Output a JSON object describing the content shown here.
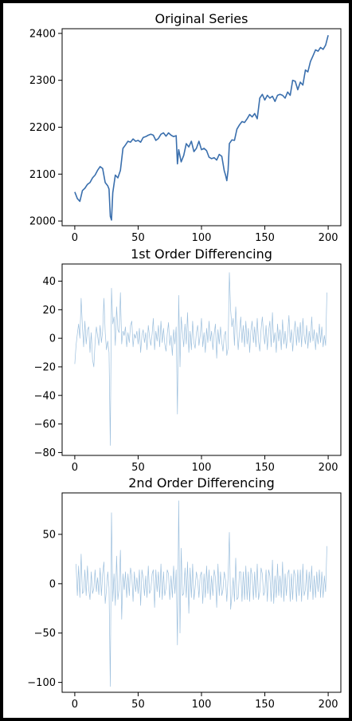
{
  "chart_data": [
    {
      "type": "line",
      "title": "Original Series",
      "xlim": [
        -10,
        210
      ],
      "ylim": [
        1990,
        2410
      ],
      "xticks": [
        0,
        50,
        100,
        150,
        200
      ],
      "yticks": [
        2000,
        2100,
        2200,
        2300,
        2400
      ],
      "line_color": "#3a6fad",
      "line_weight": "thick",
      "series": [
        {
          "x": [
            0,
            2,
            4,
            6,
            8,
            10,
            12,
            14,
            16,
            18,
            20,
            22,
            24,
            26,
            27,
            28,
            29,
            30,
            32,
            34,
            36,
            38,
            40,
            42,
            44,
            46,
            48,
            50,
            52,
            54,
            56,
            58,
            60,
            62,
            64,
            66,
            68,
            70,
            72,
            74,
            76,
            78,
            80,
            81,
            82,
            84,
            86,
            88,
            90,
            92,
            94,
            96,
            98,
            100,
            102,
            104,
            106,
            108,
            110,
            112,
            114,
            116,
            118,
            119,
            120,
            121,
            122,
            124,
            126,
            128,
            130,
            132,
            134,
            136,
            138,
            140,
            142,
            144,
            146,
            148,
            150,
            152,
            154,
            156,
            158,
            160,
            162,
            164,
            166,
            168,
            170,
            172,
            174,
            176,
            178,
            180,
            182,
            184,
            186,
            188,
            190,
            192,
            194,
            196,
            198,
            200
          ],
          "y": [
            2062,
            2048,
            2042,
            2065,
            2070,
            2078,
            2082,
            2092,
            2098,
            2108,
            2116,
            2112,
            2082,
            2075,
            2068,
            2010,
            2002,
            2060,
            2098,
            2092,
            2108,
            2155,
            2162,
            2170,
            2168,
            2175,
            2170,
            2172,
            2168,
            2178,
            2180,
            2183,
            2185,
            2183,
            2172,
            2176,
            2185,
            2188,
            2181,
            2188,
            2183,
            2180,
            2182,
            2122,
            2152,
            2126,
            2140,
            2165,
            2158,
            2170,
            2148,
            2155,
            2170,
            2152,
            2155,
            2150,
            2136,
            2133,
            2135,
            2130,
            2142,
            2138,
            2107,
            2098,
            2086,
            2108,
            2165,
            2173,
            2172,
            2196,
            2205,
            2212,
            2210,
            2218,
            2227,
            2222,
            2229,
            2218,
            2262,
            2270,
            2258,
            2268,
            2262,
            2266,
            2255,
            2268,
            2270,
            2268,
            2262,
            2275,
            2268,
            2300,
            2298,
            2280,
            2296,
            2290,
            2322,
            2318,
            2340,
            2352,
            2365,
            2362,
            2370,
            2366,
            2375,
            2396
          ]
        }
      ]
    },
    {
      "type": "line",
      "title": "1st Order Differencing",
      "xlim": [
        -10,
        210
      ],
      "ylim": [
        -82,
        52
      ],
      "xticks": [
        0,
        50,
        100,
        150,
        200
      ],
      "yticks": [
        -80,
        -60,
        -40,
        -20,
        0,
        20,
        40
      ],
      "line_color": "#9cbfdd",
      "line_weight": "thin",
      "series": [
        {
          "x": [
            0,
            1,
            2,
            3,
            4,
            5,
            6,
            7,
            8,
            9,
            10,
            11,
            12,
            13,
            14,
            15,
            16,
            17,
            18,
            19,
            20,
            21,
            22,
            23,
            24,
            25,
            26,
            27,
            28,
            29,
            30,
            31,
            32,
            33,
            34,
            35,
            36,
            37,
            38,
            39,
            40,
            41,
            42,
            43,
            44,
            45,
            46,
            47,
            48,
            49,
            50,
            51,
            52,
            53,
            54,
            55,
            56,
            57,
            58,
            59,
            60,
            61,
            62,
            63,
            64,
            65,
            66,
            67,
            68,
            69,
            70,
            71,
            72,
            73,
            74,
            75,
            76,
            77,
            78,
            79,
            80,
            81,
            82,
            83,
            84,
            85,
            86,
            87,
            88,
            89,
            90,
            91,
            92,
            93,
            94,
            95,
            96,
            97,
            98,
            99,
            100,
            101,
            102,
            103,
            104,
            105,
            106,
            107,
            108,
            109,
            110,
            111,
            112,
            113,
            114,
            115,
            116,
            117,
            118,
            119,
            120,
            121,
            122,
            123,
            124,
            125,
            126,
            127,
            128,
            129,
            130,
            131,
            132,
            133,
            134,
            135,
            136,
            137,
            138,
            139,
            140,
            141,
            142,
            143,
            144,
            145,
            146,
            147,
            148,
            149,
            150,
            151,
            152,
            153,
            154,
            155,
            156,
            157,
            158,
            159,
            160,
            161,
            162,
            163,
            164,
            165,
            166,
            167,
            168,
            169,
            170,
            171,
            172,
            173,
            174,
            175,
            176,
            177,
            178,
            179,
            180,
            181,
            182,
            183,
            184,
            185,
            186,
            187,
            188,
            189,
            190,
            191,
            192,
            193,
            194,
            195,
            196,
            197,
            198,
            199
          ],
          "y": [
            -18,
            -5,
            3,
            10,
            0,
            28,
            8,
            -6,
            12,
            -4,
            6,
            8,
            -10,
            4,
            -15,
            -20,
            -3,
            8,
            2,
            -5,
            9,
            -3,
            5,
            28,
            4,
            -8,
            -2,
            -10,
            -75,
            35,
            10,
            15,
            -5,
            22,
            6,
            4,
            32,
            -4,
            5,
            2,
            8,
            -6,
            4,
            -3,
            9,
            12,
            -6,
            3,
            0,
            5,
            -4,
            7,
            -10,
            2,
            6,
            -3,
            4,
            -8,
            9,
            1,
            -5,
            3,
            14,
            -8,
            5,
            -2,
            9,
            -6,
            12,
            -3,
            7,
            -4,
            -9,
            3,
            11,
            -5,
            2,
            -12,
            6,
            -4,
            8,
            -53,
            30,
            -20,
            15,
            4,
            -6,
            10,
            -4,
            18,
            -10,
            5,
            -8,
            12,
            -3,
            -7,
            4,
            9,
            -5,
            2,
            14,
            -6,
            4,
            -10,
            7,
            -3,
            12,
            -2,
            5,
            -8,
            3,
            10,
            -14,
            6,
            -4,
            8,
            -3,
            -9,
            2,
            5,
            -12,
            -7,
            46,
            20,
            8,
            14,
            -5,
            22,
            6,
            -8,
            4,
            15,
            -3,
            9,
            -6,
            12,
            -4,
            7,
            -10,
            5,
            12,
            -3,
            8,
            -6,
            14,
            -2,
            -9,
            6,
            15,
            3,
            -4,
            9,
            -8,
            5,
            12,
            -6,
            18,
            -3,
            4,
            -10,
            10,
            -2,
            6,
            -8,
            13,
            -4,
            5,
            -7,
            3,
            16,
            -3,
            6,
            -9,
            4,
            12,
            -5,
            8,
            -3,
            11,
            -6,
            14,
            2,
            -4,
            9,
            -7,
            5,
            -3,
            15,
            -2,
            6,
            -8,
            4,
            -4,
            10,
            -3,
            8,
            -6,
            2,
            -5,
            32
          ]
        }
      ]
    },
    {
      "type": "line",
      "title": "2nd Order Differencing",
      "xlim": [
        -10,
        210
      ],
      "ylim": [
        -110,
        92
      ],
      "xticks": [
        0,
        50,
        100,
        150,
        200
      ],
      "yticks": [
        -100,
        -50,
        0,
        50
      ],
      "line_color": "#9cbfdd",
      "line_weight": "thin",
      "series": [
        {
          "x": [
            1,
            2,
            3,
            4,
            5,
            6,
            7,
            8,
            9,
            10,
            11,
            12,
            13,
            14,
            15,
            16,
            17,
            18,
            19,
            20,
            21,
            22,
            23,
            24,
            25,
            26,
            27,
            28,
            29,
            30,
            31,
            32,
            33,
            34,
            35,
            36,
            37,
            38,
            39,
            40,
            41,
            42,
            43,
            44,
            45,
            46,
            47,
            48,
            49,
            50,
            51,
            52,
            53,
            54,
            55,
            56,
            57,
            58,
            59,
            60,
            61,
            62,
            63,
            64,
            65,
            66,
            67,
            68,
            69,
            70,
            71,
            72,
            73,
            74,
            75,
            76,
            77,
            78,
            79,
            80,
            81,
            82,
            83,
            84,
            85,
            86,
            87,
            88,
            89,
            90,
            91,
            92,
            93,
            94,
            95,
            96,
            97,
            98,
            99,
            100,
            101,
            102,
            103,
            104,
            105,
            106,
            107,
            108,
            109,
            110,
            111,
            112,
            113,
            114,
            115,
            116,
            117,
            118,
            119,
            120,
            121,
            122,
            123,
            124,
            125,
            126,
            127,
            128,
            129,
            130,
            131,
            132,
            133,
            134,
            135,
            136,
            137,
            138,
            139,
            140,
            141,
            142,
            143,
            144,
            145,
            146,
            147,
            148,
            149,
            150,
            151,
            152,
            153,
            154,
            155,
            156,
            157,
            158,
            159,
            160,
            161,
            162,
            163,
            164,
            165,
            166,
            167,
            168,
            169,
            170,
            171,
            172,
            173,
            174,
            175,
            176,
            177,
            178,
            179,
            180,
            181,
            182,
            183,
            184,
            185,
            186,
            187,
            188,
            189,
            190,
            191,
            192,
            193,
            194,
            195,
            196,
            197,
            198,
            199
          ],
          "y": [
            20,
            -12,
            18,
            -14,
            30,
            -10,
            -8,
            14,
            -12,
            18,
            -5,
            -16,
            12,
            -10,
            -5,
            14,
            -8,
            6,
            -11,
            16,
            -12,
            10,
            22,
            -20,
            -6,
            12,
            -4,
            -104,
            72,
            -18,
            10,
            -22,
            28,
            -16,
            -4,
            34,
            -36,
            10,
            -6,
            12,
            -14,
            10,
            -12,
            16,
            8,
            -18,
            12,
            -8,
            6,
            -10,
            14,
            -22,
            14,
            6,
            -12,
            8,
            -14,
            18,
            -10,
            -6,
            10,
            14,
            -24,
            14,
            -8,
            12,
            -14,
            20,
            -16,
            12,
            -12,
            -4,
            14,
            10,
            -16,
            8,
            -14,
            18,
            -10,
            14,
            -62,
            84,
            -50,
            36,
            -12,
            -10,
            16,
            -14,
            22,
            -30,
            16,
            -14,
            20,
            -16,
            -4,
            12,
            4,
            -14,
            8,
            12,
            -20,
            10,
            -14,
            18,
            -10,
            14,
            -16,
            8,
            -12,
            14,
            6,
            -24,
            20,
            -12,
            12,
            -12,
            -6,
            12,
            4,
            -18,
            6,
            52,
            -26,
            -12,
            6,
            -18,
            26,
            -16,
            -14,
            12,
            12,
            -18,
            12,
            -16,
            18,
            -16,
            12,
            -18,
            16,
            8,
            -16,
            12,
            -14,
            20,
            -16,
            -8,
            16,
            10,
            -12,
            -8,
            14,
            -18,
            14,
            8,
            -18,
            24,
            -20,
            8,
            -14,
            20,
            -12,
            8,
            -14,
            22,
            -18,
            10,
            -12,
            10,
            14,
            -18,
            10,
            -16,
            14,
            8,
            -18,
            14,
            -12,
            14,
            -18,
            20,
            -12,
            -6,
            14,
            -16,
            12,
            -8,
            18,
            -16,
            8,
            -14,
            12,
            -8,
            14,
            -14,
            12,
            -14,
            8,
            -8,
            38
          ]
        }
      ]
    }
  ]
}
